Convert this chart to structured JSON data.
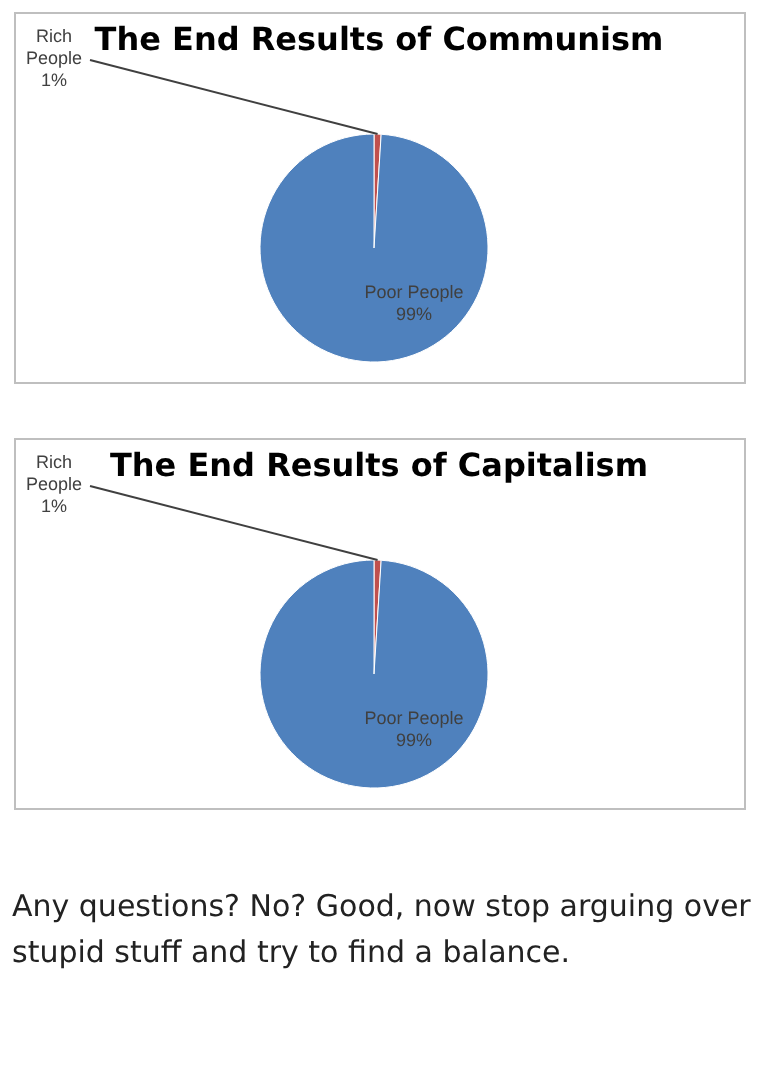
{
  "chart_data": [
    {
      "type": "pie",
      "title": "The End Results of Communism",
      "categories": [
        "Rich People",
        "Poor People"
      ],
      "values": [
        1,
        99
      ],
      "value_labels": [
        "1%",
        "99%"
      ],
      "colors": [
        "#c0504d",
        "#4f81bd"
      ],
      "legend": false
    },
    {
      "type": "pie",
      "title": "The End Results of Capitalism",
      "categories": [
        "Rich People",
        "Poor People"
      ],
      "values": [
        1,
        99
      ],
      "value_labels": [
        "1%",
        "99%"
      ],
      "colors": [
        "#c0504d",
        "#4f81bd"
      ],
      "legend": false,
      "annotations": [
        "Any questions? No? Good, now stop arguing over stupid stuff and try to find a balance."
      ]
    }
  ]
}
